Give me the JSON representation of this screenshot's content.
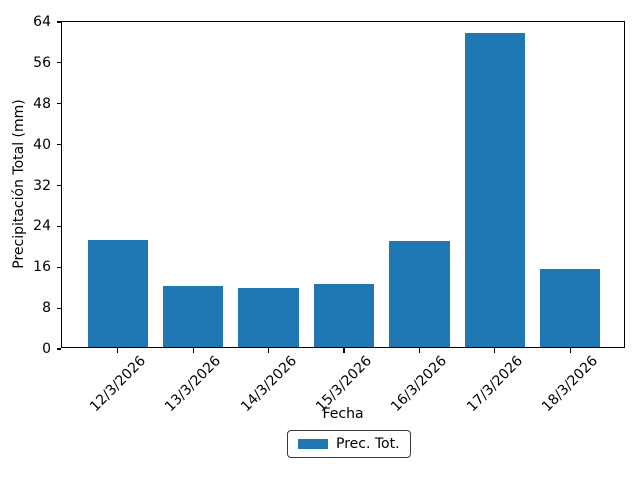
{
  "chart_data": {
    "type": "bar",
    "title": "",
    "xlabel": "Fecha",
    "ylabel": "Precipitación Total (mm)",
    "categories": [
      "12/3/2026",
      "13/3/2026",
      "14/3/2026",
      "15/3/2026",
      "16/3/2026",
      "17/3/2026",
      "18/3/2026"
    ],
    "series": [
      {
        "name": "Prec. Tot.",
        "values": [
          21,
          12,
          11.5,
          12.4,
          20.7,
          61.4,
          15.3
        ]
      }
    ],
    "ylim": [
      0,
      64
    ],
    "yticks": [
      0,
      8,
      16,
      24,
      32,
      40,
      48,
      56,
      64
    ],
    "bar_color": "#1f77b4",
    "grid": false,
    "legend_position": "lower center, outside plot",
    "x_tick_rotation_deg": 45
  }
}
